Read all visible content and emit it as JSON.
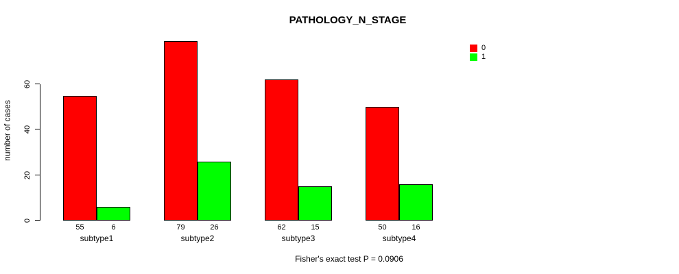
{
  "chart_data": {
    "type": "bar",
    "title": "PATHOLOGY_N_STAGE",
    "ylabel": "number of cases",
    "xlabel": "",
    "footnote": "Fisher's exact test P = 0.0906",
    "categories": [
      "subtype1",
      "subtype2",
      "subtype3",
      "subtype4"
    ],
    "series": [
      {
        "name": "0",
        "color": "#ff0000",
        "values": [
          55,
          79,
          62,
          50
        ]
      },
      {
        "name": "1",
        "color": "#00ff00",
        "values": [
          6,
          26,
          15,
          16
        ]
      }
    ],
    "show_bar_values": true,
    "yticks": [
      0,
      20,
      40,
      60
    ],
    "ylim": [
      0,
      80
    ],
    "grid": false,
    "legend_position": "top-right",
    "bar_edge_color": "#000000",
    "background_color": "#ffffff"
  }
}
